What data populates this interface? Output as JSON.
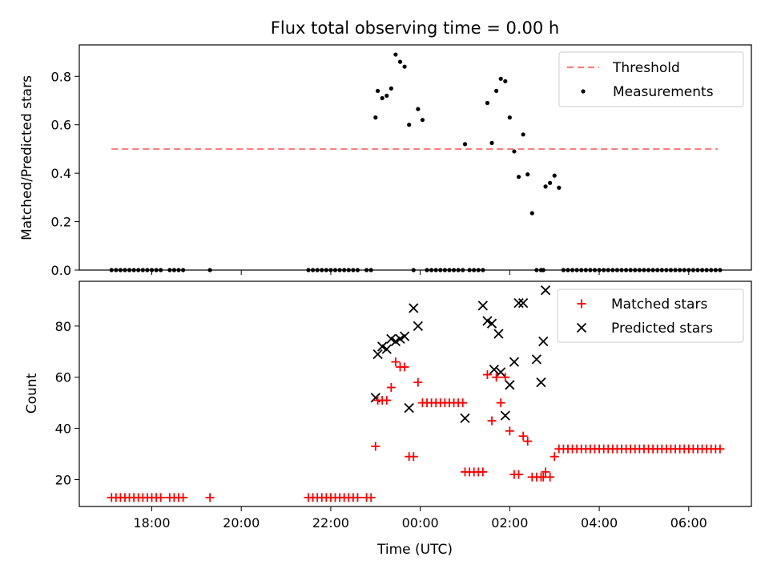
{
  "title": "Flux total observing time = 0.00 h",
  "colors": {
    "threshold": "#ff7f7f",
    "measurement": "#000000",
    "matched": "#ff0000",
    "predicted": "#000000"
  },
  "x_ticks": [
    "18:00",
    "20:00",
    "22:00",
    "00:00",
    "02:00",
    "04:00",
    "06:00"
  ],
  "xlabel": "Time (UTC)",
  "chart_data": [
    {
      "type": "scatter",
      "ylabel": "Matched/Predicted stars",
      "xlim": [
        16.38,
        31.4
      ],
      "ylim": [
        0,
        0.93
      ],
      "yticks": [
        "0.0",
        "0.2",
        "0.4",
        "0.6",
        "0.8"
      ],
      "ytick_values": [
        0,
        0.2,
        0.4,
        0.6,
        0.8
      ],
      "legend_position": "top-right",
      "threshold": {
        "name": "Threshold",
        "value": 0.5,
        "x_range": [
          17.1,
          30.65
        ],
        "style": "dashed"
      },
      "series": [
        {
          "name": "Measurements",
          "x": [
            17.1,
            17.2,
            17.3,
            17.4,
            17.5,
            17.6,
            17.7,
            17.8,
            17.9,
            18.0,
            18.1,
            18.2,
            18.4,
            18.5,
            18.6,
            18.7,
            19.3,
            21.5,
            21.6,
            21.7,
            21.8,
            21.9,
            22.0,
            22.1,
            22.2,
            22.3,
            22.4,
            22.5,
            22.6,
            22.8,
            22.9,
            23.0,
            23.05,
            23.15,
            23.25,
            23.35,
            23.45,
            23.55,
            23.65,
            23.75,
            23.85,
            23.95,
            24.05,
            24.15,
            24.25,
            24.35,
            24.45,
            24.55,
            24.65,
            24.75,
            24.85,
            24.95,
            25.0,
            25.1,
            25.2,
            25.3,
            25.4,
            25.5,
            25.6,
            25.7,
            25.8,
            25.9,
            26.0,
            26.1,
            26.2,
            26.3,
            26.4,
            26.5,
            26.6,
            26.7,
            26.75,
            26.8,
            26.9,
            27.0,
            27.1,
            27.2,
            27.3,
            27.4,
            27.5,
            27.6,
            27.7,
            27.8,
            27.9,
            28.0,
            28.1,
            28.2,
            28.3,
            28.4,
            28.5,
            28.6,
            28.7,
            28.8,
            28.9,
            29.0,
            29.1,
            29.2,
            29.3,
            29.4,
            29.5,
            29.6,
            29.7,
            29.8,
            29.9,
            30.0,
            30.1,
            30.2,
            30.3,
            30.4,
            30.5,
            30.6,
            30.7
          ],
          "y": [
            0,
            0,
            0,
            0,
            0,
            0,
            0,
            0,
            0,
            0,
            0,
            0,
            0,
            0,
            0,
            0,
            0,
            0,
            0,
            0,
            0,
            0,
            0,
            0,
            0,
            0,
            0,
            0,
            0,
            0,
            0,
            0.63,
            0.74,
            0.71,
            0.72,
            0.75,
            0.89,
            0.86,
            0.84,
            0.6,
            0,
            0.665,
            0.62,
            0,
            0,
            0,
            0,
            0,
            0,
            0,
            0,
            0,
            0.52,
            0,
            0,
            0,
            0,
            0.69,
            0.525,
            0.74,
            0.79,
            0.78,
            0.63,
            0.49,
            0.385,
            0.56,
            0.395,
            0.235,
            0,
            0,
            0,
            0.345,
            0.36,
            0.39,
            0.34,
            0,
            0,
            0,
            0,
            0,
            0,
            0,
            0,
            0,
            0,
            0,
            0,
            0,
            0,
            0,
            0,
            0,
            0,
            0,
            0,
            0,
            0,
            0,
            0,
            0,
            0,
            0,
            0,
            0,
            0,
            0,
            0,
            0,
            0,
            0,
            0
          ]
        }
      ]
    },
    {
      "type": "scatter",
      "ylabel": "Count",
      "xlabel": "Time (UTC)",
      "xlim": [
        16.38,
        31.4
      ],
      "ylim": [
        9.5,
        97.5
      ],
      "yticks": [
        "20",
        "40",
        "60",
        "80"
      ],
      "ytick_values": [
        20,
        40,
        60,
        80
      ],
      "legend_position": "top-right",
      "series": [
        {
          "name": "Matched stars",
          "marker": "plus",
          "x": [
            17.1,
            17.2,
            17.3,
            17.4,
            17.5,
            17.6,
            17.7,
            17.8,
            17.9,
            18.0,
            18.1,
            18.2,
            18.4,
            18.5,
            18.6,
            18.7,
            19.3,
            21.5,
            21.6,
            21.7,
            21.8,
            21.9,
            22.0,
            22.1,
            22.2,
            22.3,
            22.4,
            22.5,
            22.6,
            22.8,
            22.9,
            23.0,
            23.05,
            23.15,
            23.25,
            23.35,
            23.45,
            23.55,
            23.65,
            23.75,
            23.85,
            23.95,
            24.05,
            24.15,
            24.25,
            24.35,
            24.45,
            24.55,
            24.65,
            24.75,
            24.85,
            24.95,
            25.0,
            25.1,
            25.2,
            25.3,
            25.4,
            25.5,
            25.6,
            25.7,
            25.8,
            25.9,
            26.0,
            26.1,
            26.2,
            26.3,
            26.4,
            26.5,
            26.6,
            26.7,
            26.75,
            26.8,
            26.9,
            27.0,
            27.1,
            27.2,
            27.3,
            27.4,
            27.5,
            27.6,
            27.7,
            27.8,
            27.9,
            28.0,
            28.1,
            28.2,
            28.3,
            28.4,
            28.5,
            28.6,
            28.7,
            28.8,
            28.9,
            29.0,
            29.1,
            29.2,
            29.3,
            29.4,
            29.5,
            29.6,
            29.7,
            29.8,
            29.9,
            30.0,
            30.1,
            30.2,
            30.3,
            30.4,
            30.5,
            30.6,
            30.7
          ],
          "y": [
            13,
            13,
            13,
            13,
            13,
            13,
            13,
            13,
            13,
            13,
            13,
            13,
            13,
            13,
            13,
            13,
            13,
            13,
            13,
            13,
            13,
            13,
            13,
            13,
            13,
            13,
            13,
            13,
            13,
            13,
            13,
            33,
            51,
            51,
            51,
            56,
            66,
            64,
            64,
            29,
            29,
            58,
            50,
            50,
            50,
            50,
            50,
            50,
            50,
            50,
            50,
            50,
            23,
            23,
            23,
            23,
            23,
            61,
            43,
            60,
            50,
            60,
            39,
            22,
            22,
            37,
            35,
            21,
            21,
            21,
            21,
            23,
            21,
            29,
            32,
            32,
            32,
            32,
            32,
            32,
            32,
            32,
            32,
            32,
            32,
            32,
            32,
            32,
            32,
            32,
            32,
            32,
            32,
            32,
            32,
            32,
            32,
            32,
            32,
            32,
            32,
            32,
            32,
            32,
            32,
            32,
            32,
            32,
            32,
            32,
            32
          ]
        },
        {
          "name": "Predicted stars",
          "marker": "x",
          "x": [
            23.0,
            23.05,
            23.15,
            23.25,
            23.35,
            23.45,
            23.55,
            23.65,
            23.75,
            23.85,
            23.95,
            25.0,
            25.4,
            25.5,
            25.6,
            25.65,
            25.75,
            25.8,
            25.9,
            26.0,
            26.1,
            26.2,
            26.3,
            26.6,
            26.7,
            26.75,
            26.8
          ],
          "y": [
            52,
            69,
            72,
            71,
            75,
            74,
            75,
            76,
            48,
            87,
            80,
            44,
            88,
            82,
            81,
            63,
            77,
            62,
            45,
            57,
            66,
            89,
            89,
            67,
            58,
            74,
            94
          ]
        }
      ]
    }
  ]
}
